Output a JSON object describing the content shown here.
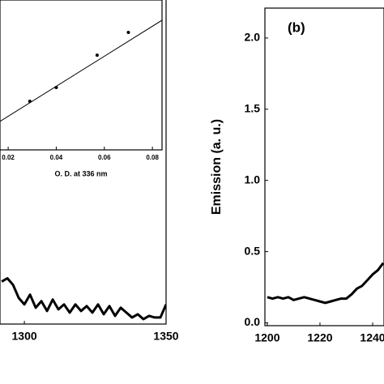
{
  "chart_data": [
    {
      "type": "line",
      "x": [
        1292,
        1294,
        1296,
        1298,
        1300,
        1302,
        1304,
        1306,
        1308,
        1310,
        1312,
        1314,
        1316,
        1318,
        1320,
        1322,
        1324,
        1326,
        1328,
        1330,
        1332,
        1334,
        1336,
        1338,
        1340,
        1342,
        1344,
        1346,
        1348,
        1350
      ],
      "series": [
        {
          "color": "#000000",
          "values": [
            0.24,
            0.26,
            0.22,
            0.14,
            0.1,
            0.16,
            0.08,
            0.12,
            0.06,
            0.13,
            0.07,
            0.1,
            0.05,
            0.1,
            0.06,
            0.09,
            0.05,
            0.1,
            0.04,
            0.09,
            0.03,
            0.08,
            0.05,
            0.02,
            0.04,
            0.01,
            0.03,
            0.02,
            0.02,
            0.1
          ]
        }
      ],
      "xlim": [
        1291.4,
        1350
      ],
      "xticks": [
        1300,
        1350
      ],
      "ylim": [
        -0.02,
        2.21
      ]
    },
    {
      "type": "scatter",
      "xlabel": "O. D. at 336 nm",
      "x": [
        0.029,
        0.04,
        0.057,
        0.07
      ],
      "values": [
        0.324,
        0.416,
        0.632,
        0.784
      ],
      "color": "#000000",
      "fit": {
        "x": [
          0.0166,
          0.084
        ],
        "values": [
          0.19,
          0.865
        ]
      },
      "xlim": [
        0.0166,
        0.084
      ],
      "xticks": [
        0.02,
        0.04,
        0.06,
        0.08
      ],
      "ylim": [
        0,
        1
      ]
    },
    {
      "type": "line",
      "ylabel": "Emission (a. u.)",
      "annotation": "(b)",
      "x": [
        1200,
        1202,
        1204,
        1206,
        1208,
        1210,
        1212,
        1214,
        1216,
        1218,
        1220,
        1222,
        1224,
        1226,
        1228,
        1230,
        1232,
        1234,
        1236,
        1238,
        1240,
        1242,
        1244
      ],
      "series": [
        {
          "color": "#000000",
          "values": [
            0.18,
            0.17,
            0.18,
            0.17,
            0.18,
            0.16,
            0.17,
            0.18,
            0.17,
            0.16,
            0.15,
            0.14,
            0.15,
            0.16,
            0.17,
            0.17,
            0.2,
            0.24,
            0.26,
            0.3,
            0.34,
            0.37,
            0.42
          ]
        }
      ],
      "xlim": [
        1199.1,
        1244.3
      ],
      "xticks": [
        1200,
        1220,
        1240
      ],
      "ylim": [
        -0.02,
        2.21
      ],
      "yticks": [
        0.0,
        0.5,
        1.0,
        1.5,
        2.0
      ]
    }
  ]
}
